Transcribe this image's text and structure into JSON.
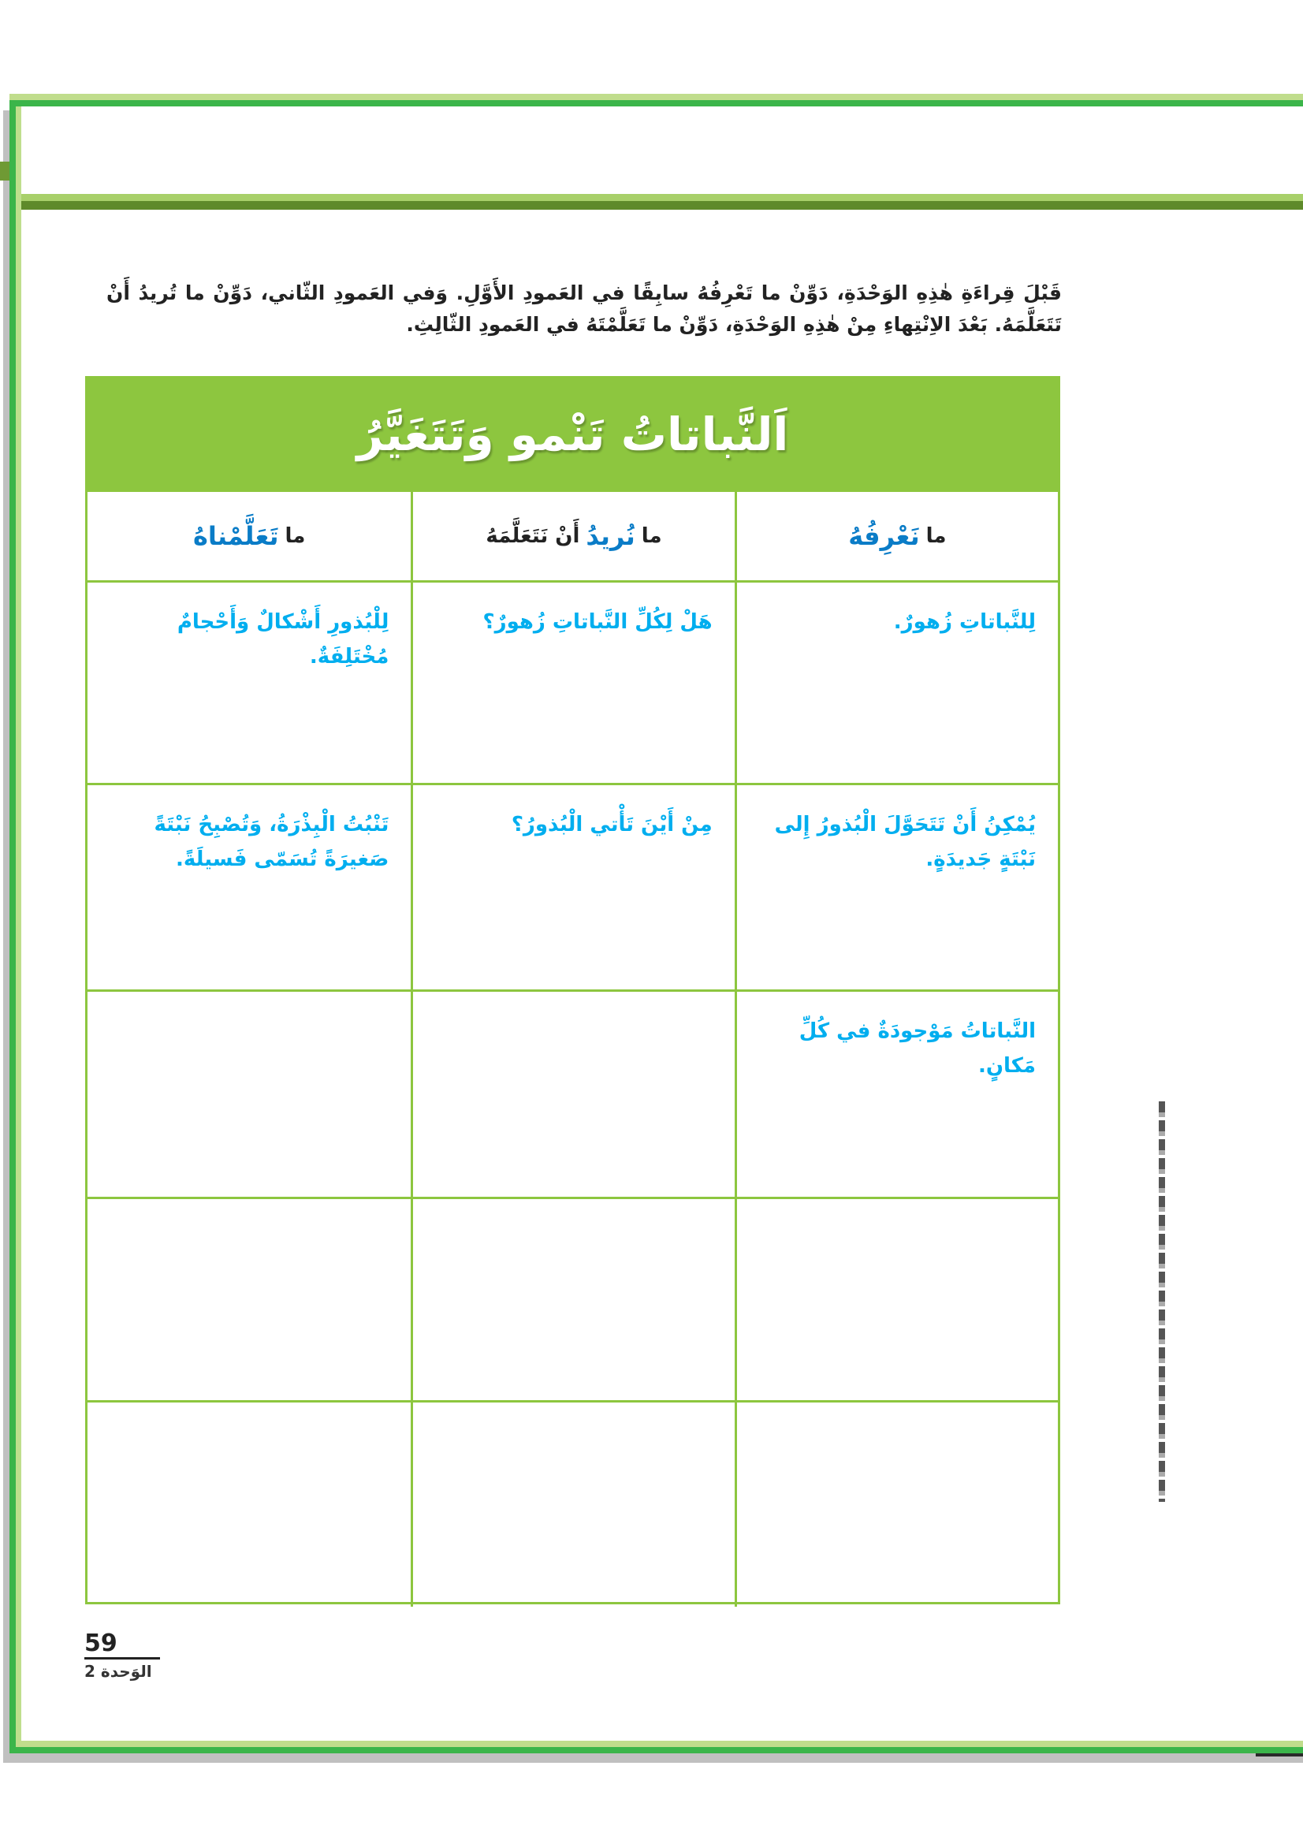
{
  "colors": {
    "frame_green": "#3bb54a",
    "band_green": "#5e8a2a",
    "table_green": "#8dc63f",
    "text_blue": "#00aeef",
    "heading_blue": "#0a7cc7"
  },
  "intro": "قَبْلَ قِراءَةِ هٰذِهِ الوَحْدَةِ، دَوِّنْ ما تَعْرِفُهُ سابِقًا في العَمودِ الأَوَّلِ. وَفي العَمودِ الثّاني، دَوِّنْ ما تُريدُ أَنْ تَتَعَلَّمَهُ. بَعْدَ الاِنْتِهاءِ مِنْ هٰذِهِ الوَحْدَةِ، دَوِّنْ ما تَعَلَّمْتَهُ في العَمودِ الثّالِثِ.",
  "table": {
    "title": "اَلنَّباتاتُ تَنْمو وَتَتَغَيَّرُ",
    "headers": [
      {
        "prefix": "ما",
        "emphasis": "نَعْرِفُهُ",
        "suffix": ""
      },
      {
        "prefix": "ما",
        "emphasis": "نُريدُ",
        "suffix": "أَنْ نَتَعَلَّمَهُ"
      },
      {
        "prefix": "ما",
        "emphasis": "تَعَلَّمْناهُ",
        "suffix": ""
      }
    ],
    "rows": [
      [
        "لِلنَّباتاتِ زُهورٌ.",
        "هَلْ لِكُلِّ النَّباتاتِ زُهورٌ؟",
        "لِلْبُذورِ أَشْكالٌ وَأَحْجامٌ مُخْتَلِفَةٌ."
      ],
      [
        "يُمْكِنُ أَنْ تَتَحَوَّلَ الْبُذورُ إِلى نَبْتَةٍ جَديدَةٍ.",
        "مِنْ أَيْنَ تَأْتي الْبُذورُ؟",
        "تَنْبُتُ الْبِذْرَةُ، وَتُصْبِحُ نَبْتَةً صَغيرَةً تُسَمّى فَسيلَةً."
      ],
      [
        "النَّباتاتُ مَوْجودَةٌ في كُلِّ مَكانٍ.",
        "",
        ""
      ],
      [
        "",
        "",
        ""
      ],
      [
        "",
        "",
        ""
      ]
    ]
  },
  "footer": {
    "page_number": "59",
    "unit": "الوَحدة 2"
  }
}
